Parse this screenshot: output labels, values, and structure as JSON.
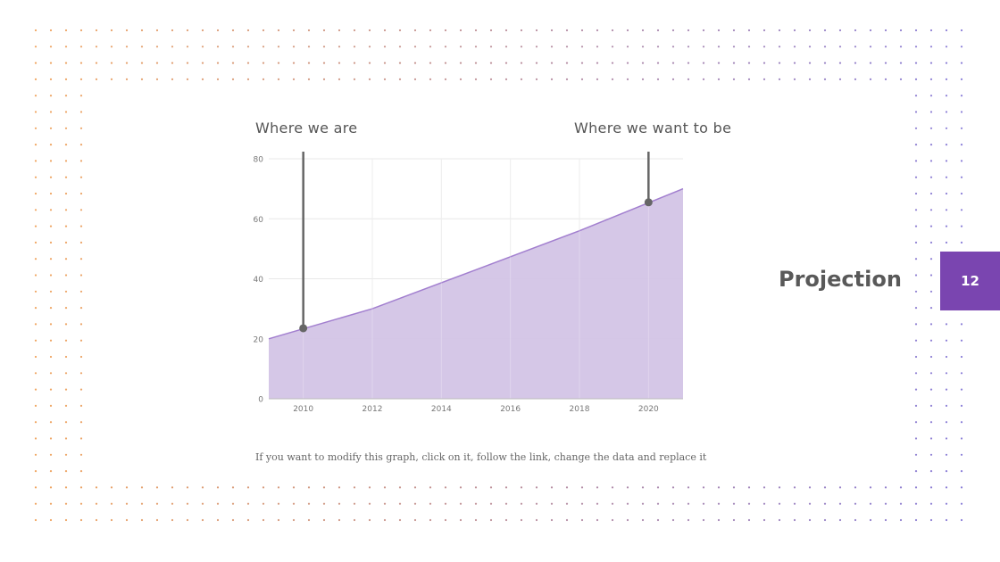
{
  "slide": {
    "title": "Projection",
    "page_number": "12",
    "annotation_left": "Where we are",
    "annotation_right": "Where we want to be",
    "note": "If you want to modify this graph, click on it, follow the link, change the data and replace it"
  },
  "colors": {
    "accent": "#7a45b0",
    "area_fill": "#d3c4e6",
    "area_line": "#a27fcf",
    "marker": "#666666",
    "dot_warm": "#f0a560",
    "dot_cool": "#8a7ed8"
  },
  "chart_data": {
    "type": "area",
    "x": [
      2009,
      2012,
      2015,
      2018,
      2021
    ],
    "values": [
      20,
      30,
      43,
      56,
      70
    ],
    "xticks": [
      "2010",
      "2012",
      "2014",
      "2016",
      "2018",
      "2020"
    ],
    "yticks": [
      "0",
      "20",
      "40",
      "60",
      "80"
    ],
    "xlim": [
      2009,
      2021
    ],
    "ylim": [
      0,
      80
    ],
    "grid": true,
    "markers": [
      {
        "x": 2010,
        "y": 23.5
      },
      {
        "x": 2020,
        "y": 65.5
      }
    ]
  }
}
